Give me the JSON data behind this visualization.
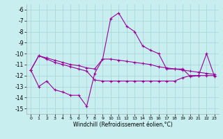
{
  "xlabel": "Windchill (Refroidissement éolien,°C)",
  "bg_color": "#c8eef0",
  "grid_color": "#aad8dc",
  "line_color": "#990099",
  "x_ticks": [
    0,
    1,
    2,
    3,
    4,
    5,
    6,
    7,
    8,
    9,
    10,
    11,
    12,
    13,
    14,
    15,
    16,
    17,
    18,
    19,
    20,
    21,
    22,
    23
  ],
  "y_ticks": [
    -6,
    -7,
    -8,
    -9,
    -10,
    -11,
    -12,
    -13,
    -14,
    -15
  ],
  "ylim": [
    -15.5,
    -5.5
  ],
  "xlim": [
    -0.5,
    23.5
  ],
  "series": [
    {
      "x": [
        0,
        1,
        2,
        3,
        4,
        5,
        6,
        7,
        8,
        9,
        10,
        11,
        12,
        13,
        14,
        15,
        16,
        17,
        18,
        19,
        20,
        21,
        22,
        23
      ],
      "y": [
        -11.5,
        -13.0,
        -12.5,
        -13.3,
        -13.5,
        -13.8,
        -13.8,
        -14.8,
        -11.8,
        -10.5,
        -6.8,
        -6.3,
        -7.5,
        -8.0,
        -9.3,
        -9.7,
        -10.0,
        -11.4,
        -11.4,
        -11.4,
        -12.1,
        -12.0,
        -10.0,
        -12.1
      ]
    },
    {
      "x": [
        0,
        1,
        2,
        3,
        4,
        5,
        6,
        7,
        8,
        9,
        10,
        11,
        12,
        13,
        14,
        15,
        16,
        17,
        18,
        19,
        20,
        21,
        22,
        23
      ],
      "y": [
        -11.5,
        -10.2,
        -10.4,
        -10.6,
        -10.8,
        -11.0,
        -11.1,
        -11.3,
        -11.4,
        -10.5,
        -10.5,
        -10.6,
        -10.7,
        -10.8,
        -10.9,
        -11.0,
        -11.2,
        -11.3,
        -11.4,
        -11.5,
        -11.6,
        -11.7,
        -11.8,
        -11.9
      ]
    },
    {
      "x": [
        0,
        1,
        2,
        3,
        4,
        5,
        6,
        7,
        8,
        9,
        10,
        11,
        12,
        13,
        14,
        15,
        16,
        17,
        18,
        19,
        20,
        21,
        22,
        23
      ],
      "y": [
        -11.5,
        -10.2,
        -10.5,
        -10.8,
        -11.0,
        -11.2,
        -11.4,
        -11.6,
        -12.4,
        -12.5,
        -12.5,
        -12.5,
        -12.5,
        -12.5,
        -12.5,
        -12.5,
        -12.5,
        -12.5,
        -12.5,
        -12.2,
        -12.0,
        -12.0,
        -12.0,
        -12.0
      ]
    }
  ]
}
